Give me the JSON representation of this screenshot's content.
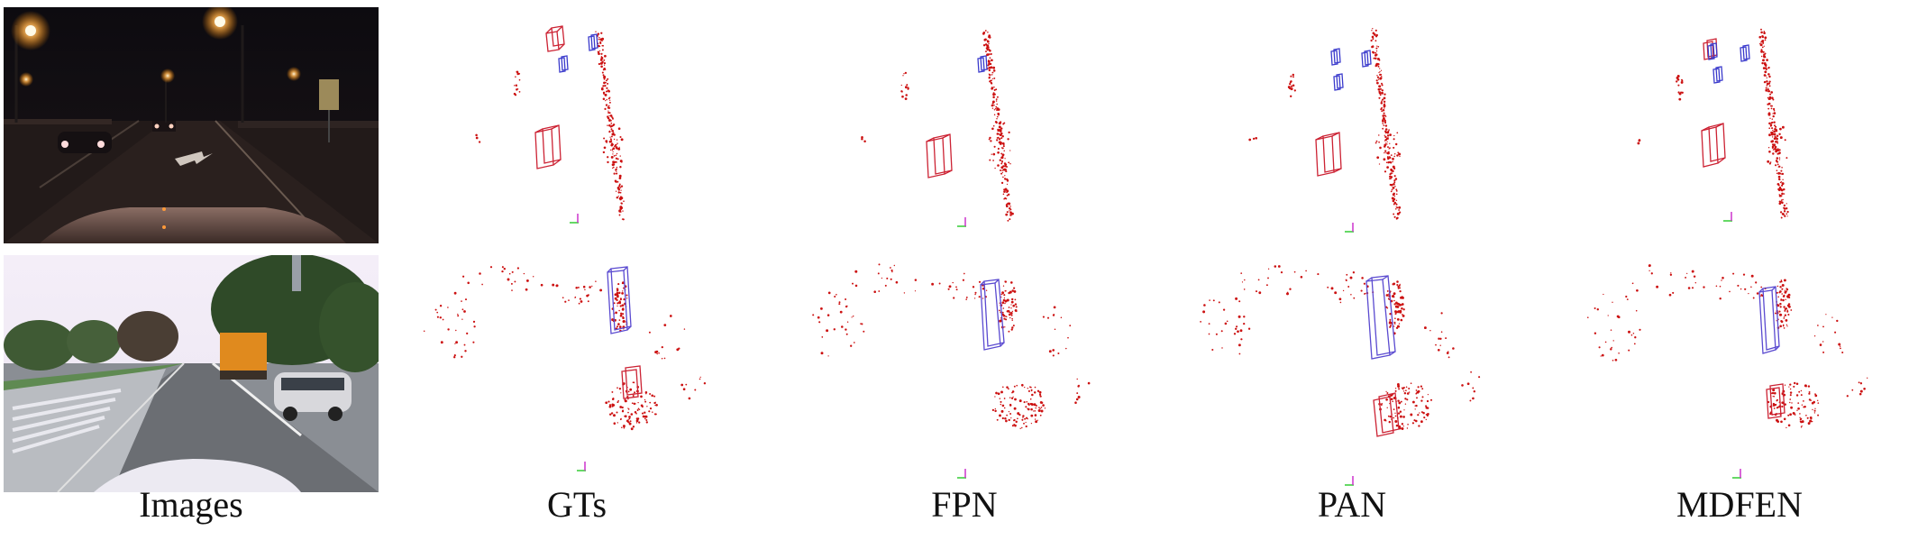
{
  "figure": {
    "columns": [
      {
        "id": "images",
        "label": "Images"
      },
      {
        "id": "gts",
        "label": "GTs"
      },
      {
        "id": "fpn",
        "label": "FPN"
      },
      {
        "id": "pan",
        "label": "PAN"
      },
      {
        "id": "mdfen",
        "label": "MDFEN"
      }
    ],
    "rows": [
      {
        "id": "night",
        "scene": "night road with street lamps"
      },
      {
        "id": "day",
        "scene": "daytime road with truck and van"
      }
    ]
  },
  "colors": {
    "point_cloud": "#cc1111",
    "box_car": "#cc2233",
    "box_cyclist": "#3a3acc",
    "box_truck": "#5a4ad0",
    "axis_x": "#33cc33",
    "axis_y": "#cc33cc"
  }
}
